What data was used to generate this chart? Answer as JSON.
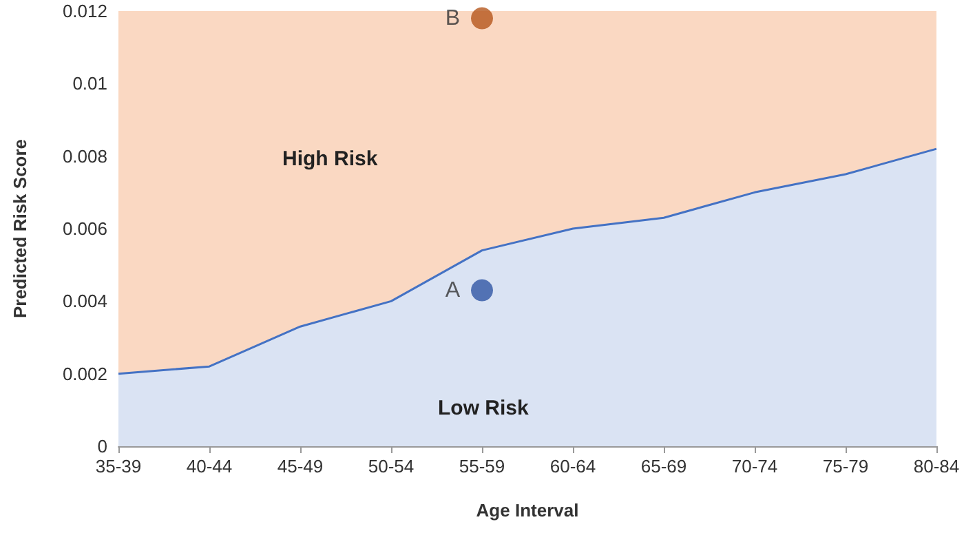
{
  "chart_data": {
    "type": "area",
    "xlabel": "Age Interval",
    "ylabel": "Predicted Risk Score",
    "categories": [
      "35-39",
      "40-44",
      "45-49",
      "50-54",
      "55-59",
      "60-64",
      "65-69",
      "70-74",
      "75-79",
      "80-84"
    ],
    "series": [
      {
        "color": "#4472c4",
        "values": [
          0.002,
          0.0022,
          0.0033,
          0.004,
          0.0054,
          0.006,
          0.0063,
          0.007,
          0.0075,
          0.0082
        ]
      },
      {
        "type": "scatter",
        "name": "A",
        "color": "#2f55a4",
        "x": [
          "55-59"
        ],
        "values": [
          0.0043
        ],
        "marker": "circle"
      },
      {
        "type": "scatter",
        "name": "B",
        "color": "#b5561b",
        "x": [
          "55-59"
        ],
        "values": [
          0.0118
        ],
        "marker": "circle"
      }
    ],
    "bands": [
      {
        "axis": "y",
        "from": 0,
        "to": 0.012,
        "color": "#f8cbad"
      }
    ],
    "annotations": [
      "High Risk",
      "Low Risk"
    ],
    "ylim": [
      0,
      0.012
    ],
    "yticks": [
      0,
      0.002,
      0.004,
      0.006,
      0.008,
      0.01,
      0.012
    ],
    "grid": false,
    "legend": false
  }
}
